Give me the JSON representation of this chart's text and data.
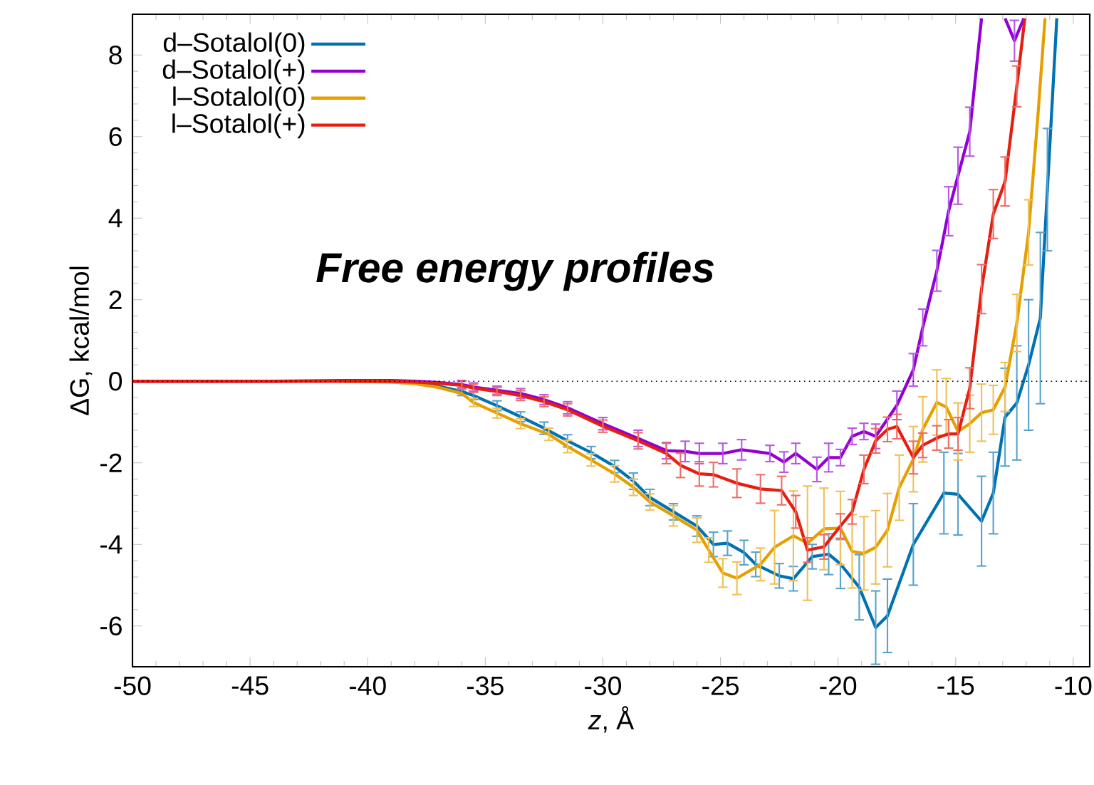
{
  "chart_data": {
    "type": "line",
    "annotations": [
      "**Free energy profiles**"
    ],
    "xlabel": "*z*, Å",
    "ylabel": "ΔG, kcal/mol",
    "xlim": [
      -50,
      -9.3
    ],
    "ylim": [
      -7,
      9
    ],
    "xticks": [
      -50,
      -45,
      -40,
      -35,
      -30,
      -25,
      -20,
      -15,
      -10
    ],
    "yticks": [
      -6,
      -4,
      -2,
      0,
      2,
      4,
      6,
      8
    ],
    "legend": "top left",
    "marker": "none",
    "ref_lines": [
      {
        "axis": "y",
        "value": 0,
        "color": "#000000",
        "line_style": "dotted"
      }
    ],
    "series": [
      {
        "name": "d–Sotalol(0)",
        "color": "#0072b2",
        "x": [
          -38,
          -37,
          -36,
          -35.5,
          -34.5,
          -33.5,
          -32.5,
          -31.5,
          -30.5,
          -29.5,
          -28.7,
          -28,
          -27,
          -26,
          -25.3,
          -24.7,
          -24,
          -23.5,
          -22.5,
          -21.9,
          -21.1,
          -20.4,
          -19.9,
          -19.1,
          -18.4,
          -17.9,
          -16.8,
          -15.5,
          -14.9,
          -13.9,
          -13.4,
          -12.9,
          -12.4,
          -11.9,
          -11.4,
          -11.1,
          -10.7
        ],
        "values": [
          -0.05,
          -0.12,
          -0.25,
          -0.35,
          -0.6,
          -0.87,
          -1.15,
          -1.46,
          -1.75,
          -2.09,
          -2.45,
          -2.85,
          -3.2,
          -3.55,
          -4.0,
          -3.97,
          -4.2,
          -4.49,
          -4.77,
          -4.84,
          -4.3,
          -4.24,
          -4.48,
          -5.05,
          -6.04,
          -5.75,
          -4.0,
          -2.74,
          -2.77,
          -3.43,
          -2.74,
          -0.88,
          -0.53,
          0.4,
          1.55,
          4.7,
          8.9
        ],
        "errors": [
          null,
          null,
          0.1,
          0.1,
          0.12,
          0.12,
          0.15,
          0.15,
          0.15,
          0.15,
          0.2,
          0.2,
          0.2,
          0.25,
          0.3,
          0.3,
          0.3,
          0.3,
          0.3,
          0.3,
          0.3,
          0.5,
          0.6,
          0.8,
          0.9,
          0.9,
          1.0,
          1.0,
          1.0,
          1.1,
          1.0,
          1.2,
          1.4,
          1.6,
          2.1,
          1.5,
          null
        ]
      },
      {
        "name": "d–Sotalol(+)",
        "color": "#9400d3",
        "x": [
          -50,
          -47,
          -44,
          -41,
          -39,
          -38,
          -37,
          -36,
          -35.5,
          -34.5,
          -33.5,
          -32.5,
          -31.5,
          -30,
          -28.5,
          -27.3,
          -26.5,
          -25.9,
          -24.9,
          -24.1,
          -22.9,
          -22.3,
          -21.8,
          -20.9,
          -20.4,
          -19.9,
          -19.4,
          -18.9,
          -18.4,
          -17.5,
          -16.8,
          -16.4,
          -15.8,
          -15.3,
          -14.9,
          -14.4,
          -13.9,
          -13.4,
          -12.9,
          -12.5,
          -12.1
        ],
        "values": [
          0,
          0,
          0,
          0.02,
          0.02,
          0,
          -0.03,
          -0.08,
          -0.14,
          -0.22,
          -0.3,
          -0.45,
          -0.65,
          -1.04,
          -1.4,
          -1.7,
          -1.72,
          -1.77,
          -1.77,
          -1.68,
          -1.77,
          -1.98,
          -1.77,
          -2.16,
          -1.87,
          -1.87,
          -1.35,
          -1.23,
          -1.35,
          -0.59,
          0.28,
          1.32,
          2.71,
          4.17,
          5.04,
          6.12,
          8.9,
          null,
          8.9,
          8.35,
          8.9
        ],
        "errors": [
          null,
          null,
          null,
          null,
          null,
          null,
          null,
          0.1,
          0.1,
          0.1,
          0.12,
          0.12,
          0.15,
          0.15,
          0.2,
          0.2,
          0.25,
          0.25,
          0.25,
          0.25,
          0.2,
          0.25,
          0.25,
          0.3,
          0.35,
          0.2,
          0.2,
          0.2,
          0.3,
          0.35,
          0.4,
          0.45,
          0.5,
          0.6,
          0.7,
          0.6,
          null,
          null,
          null,
          0.5,
          null
        ]
      },
      {
        "name": "l–Sotalol(0)",
        "color": "#e69f00",
        "x": [
          -41,
          -39,
          -38,
          -37,
          -36,
          -35.5,
          -34.5,
          -33.5,
          -32.3,
          -31.5,
          -30.5,
          -29.5,
          -28.7,
          -28,
          -27,
          -26,
          -25.5,
          -24.9,
          -24.3,
          -23.3,
          -22.7,
          -21.9,
          -21.3,
          -20.6,
          -19.9,
          -19.4,
          -18.9,
          -18.4,
          -17.9,
          -17.4,
          -16.8,
          -16.4,
          -15.8,
          -15.4,
          -14.9,
          -14.4,
          -13.9,
          -13.4,
          -12.9,
          -12.4,
          -11.9,
          -11.5,
          -11.2
        ],
        "values": [
          0,
          -0.02,
          -0.06,
          -0.15,
          -0.3,
          -0.52,
          -0.78,
          -1.04,
          -1.3,
          -1.6,
          -1.93,
          -2.27,
          -2.6,
          -2.96,
          -3.3,
          -3.65,
          -4.14,
          -4.7,
          -4.83,
          -4.49,
          -4.07,
          -3.79,
          -3.97,
          -3.62,
          -3.6,
          -4.17,
          -4.22,
          -4.07,
          -3.65,
          -2.61,
          -1.91,
          -1.18,
          -0.52,
          -0.63,
          -1.23,
          -1.04,
          -0.77,
          -0.7,
          -0.14,
          1.43,
          3.65,
          6.54,
          8.9
        ],
        "errors": [
          null,
          null,
          null,
          null,
          null,
          0.1,
          0.12,
          0.12,
          0.15,
          0.15,
          0.15,
          0.2,
          0.2,
          0.2,
          0.25,
          0.3,
          0.3,
          0.35,
          0.4,
          0.4,
          0.9,
          1.1,
          1.4,
          1.0,
          0.9,
          0.9,
          0.9,
          0.9,
          0.9,
          0.8,
          0.8,
          0.8,
          0.8,
          0.7,
          0.7,
          0.7,
          0.7,
          0.6,
          0.6,
          0.7,
          0.8,
          null,
          null
        ]
      },
      {
        "name": "l–Sotalol(+)",
        "color": "#e51e10",
        "x": [
          -50,
          -47,
          -44,
          -41,
          -39,
          -38,
          -37,
          -36,
          -35.5,
          -34.5,
          -33.5,
          -32.5,
          -31.5,
          -30,
          -28.5,
          -27.3,
          -26.7,
          -25.9,
          -25.3,
          -24.3,
          -23.3,
          -22.4,
          -21.8,
          -21.3,
          -20.6,
          -19.9,
          -19.4,
          -18.9,
          -18.4,
          -17.9,
          -17.5,
          -16.8,
          -16.4,
          -15.8,
          -15.3,
          -14.9,
          -14.4,
          -13.9,
          -13.4,
          -12.9,
          -12.4,
          -12.06
        ],
        "values": [
          0,
          0,
          0,
          0,
          0,
          -0.02,
          -0.05,
          -0.1,
          -0.17,
          -0.25,
          -0.35,
          -0.5,
          -0.7,
          -1.1,
          -1.46,
          -1.77,
          -2.06,
          -2.27,
          -2.29,
          -2.5,
          -2.64,
          -2.68,
          -3.2,
          -4.14,
          -4.06,
          -3.55,
          -3.2,
          -2.16,
          -1.46,
          -1.18,
          -1.11,
          -1.87,
          -1.57,
          -1.39,
          -1.29,
          -1.29,
          -0.17,
          2.26,
          4.1,
          4.9,
          7.23,
          8.9
        ],
        "errors": [
          null,
          null,
          null,
          null,
          null,
          null,
          null,
          0.1,
          0.1,
          0.1,
          0.12,
          0.12,
          0.15,
          0.15,
          0.2,
          0.25,
          0.3,
          0.3,
          0.3,
          0.35,
          0.35,
          0.35,
          0.4,
          0.3,
          0.3,
          0.3,
          0.3,
          0.35,
          0.3,
          0.3,
          0.3,
          0.4,
          0.3,
          0.3,
          0.35,
          0.4,
          0.5,
          0.6,
          0.6,
          0.6,
          0.5,
          null
        ]
      }
    ]
  }
}
